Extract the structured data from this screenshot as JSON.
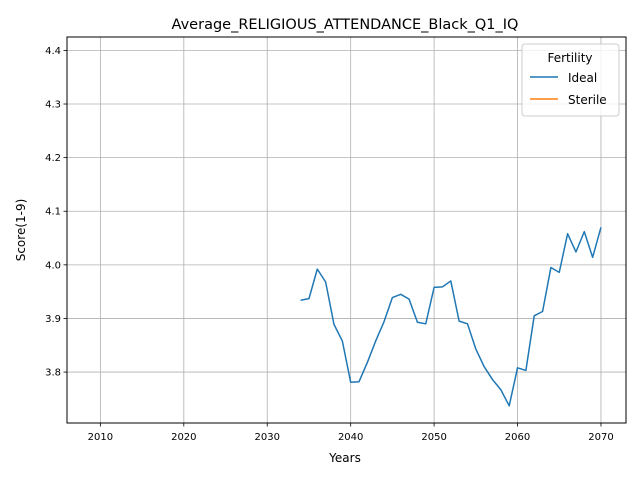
{
  "chart_data": {
    "type": "line",
    "title": "Average_RELIGIOUS_ATTENDANCE_Black_Q1_IQ",
    "xlabel": "Years",
    "ylabel": "Score(1-9)",
    "xlim": [
      2006,
      2073
    ],
    "ylim": [
      3.705,
      4.425
    ],
    "xticks": [
      2010,
      2020,
      2030,
      2040,
      2050,
      2060,
      2070
    ],
    "yticks": [
      3.8,
      3.9,
      4.0,
      4.1,
      4.2,
      4.3,
      4.4
    ],
    "grid": true,
    "legend": {
      "title": "Fertility",
      "position": "top-right"
    },
    "series": [
      {
        "name": "Ideal",
        "color": "#1f77b4",
        "points": [
          [
            2034,
            3.934
          ],
          [
            2035,
            3.937
          ],
          [
            2036,
            3.992
          ],
          [
            2037,
            3.968
          ],
          [
            2038,
            3.889
          ],
          [
            2039,
            3.858
          ],
          [
            2040,
            3.781
          ],
          [
            2041,
            3.782
          ],
          [
            2042,
            3.818
          ],
          [
            2043,
            3.858
          ],
          [
            2044,
            3.894
          ],
          [
            2045,
            3.939
          ],
          [
            2046,
            3.945
          ],
          [
            2047,
            3.936
          ],
          [
            2048,
            3.893
          ],
          [
            2049,
            3.89
          ],
          [
            2050,
            3.958
          ],
          [
            2051,
            3.959
          ],
          [
            2052,
            3.97
          ],
          [
            2053,
            3.895
          ],
          [
            2054,
            3.89
          ],
          [
            2055,
            3.843
          ],
          [
            2056,
            3.81
          ],
          [
            2057,
            3.786
          ],
          [
            2058,
            3.767
          ],
          [
            2059,
            3.737
          ],
          [
            2060,
            3.808
          ],
          [
            2061,
            3.803
          ],
          [
            2062,
            3.905
          ],
          [
            2063,
            3.913
          ],
          [
            2064,
            3.995
          ],
          [
            2065,
            3.986
          ],
          [
            2066,
            4.058
          ],
          [
            2067,
            4.024
          ],
          [
            2068,
            4.062
          ],
          [
            2069,
            4.014
          ],
          [
            2070,
            4.07
          ]
        ]
      },
      {
        "name": "Sterile",
        "color": "#ff7f0e",
        "points": []
      }
    ]
  }
}
